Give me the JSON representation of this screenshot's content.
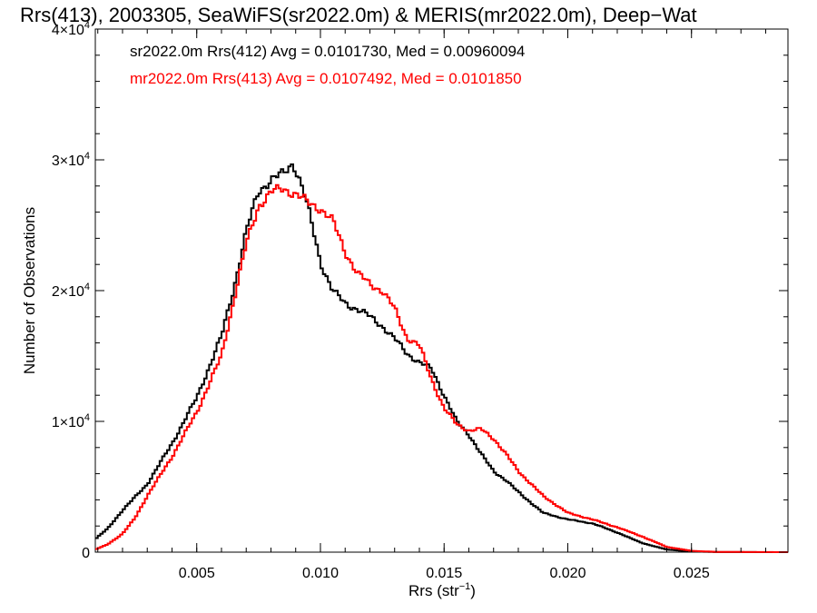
{
  "chart_data": {
    "type": "line",
    "title": "Rrs(413), 2003305, SeaWiFS(sr2022.0m) & MERIS(mr2022.0m), Deep−Wat",
    "xlabel": "Rrs (str",
    "xlabel_sup": "−1",
    "xlabel_close": ")",
    "ylabel": "Number of Observations",
    "xlim": [
      0.0009,
      0.0289
    ],
    "ylim": [
      0,
      40000
    ],
    "x_ticks": [
      0.005,
      0.01,
      0.015,
      0.02,
      0.025
    ],
    "x_tick_labels": [
      "0.005",
      "0.010",
      "0.015",
      "0.020",
      "0.025"
    ],
    "y_ticks": [
      {
        "value": 0,
        "base": "0",
        "exp": ""
      },
      {
        "value": 10000,
        "base": "1×10",
        "exp": "4"
      },
      {
        "value": 20000,
        "base": "2×10",
        "exp": "4"
      },
      {
        "value": 30000,
        "base": "3×10",
        "exp": "4"
      },
      {
        "value": 40000,
        "base": "4×10",
        "exp": "4"
      }
    ],
    "grid": false,
    "legend_position": "top-left",
    "step": 0.0001,
    "series": [
      {
        "name": "sr2022.0m Rrs(412) Avg = 0.0101730, Med = 0.00960094",
        "color": "#000000",
        "points": [
          [
            0.0009,
            1000
          ],
          [
            0.0014,
            1800
          ],
          [
            0.002,
            3200
          ],
          [
            0.003,
            5200
          ],
          [
            0.004,
            8300
          ],
          [
            0.005,
            11800
          ],
          [
            0.006,
            16500
          ],
          [
            0.0065,
            20200
          ],
          [
            0.007,
            24500
          ],
          [
            0.0075,
            27600
          ],
          [
            0.008,
            28500
          ],
          [
            0.0085,
            28900
          ],
          [
            0.0089,
            29800
          ],
          [
            0.0092,
            28300
          ],
          [
            0.0095,
            26300
          ],
          [
            0.01,
            22200
          ],
          [
            0.0105,
            20000
          ],
          [
            0.011,
            19000
          ],
          [
            0.0115,
            18600
          ],
          [
            0.012,
            18000
          ],
          [
            0.0125,
            17300
          ],
          [
            0.013,
            16300
          ],
          [
            0.0135,
            15200
          ],
          [
            0.014,
            14500
          ],
          [
            0.0145,
            14000
          ],
          [
            0.015,
            12000
          ],
          [
            0.0155,
            10000
          ],
          [
            0.016,
            9000
          ],
          [
            0.0165,
            7500
          ],
          [
            0.017,
            6200
          ],
          [
            0.0175,
            5500
          ],
          [
            0.018,
            4600
          ],
          [
            0.0185,
            3800
          ],
          [
            0.019,
            3000
          ],
          [
            0.02,
            2500
          ],
          [
            0.021,
            2200
          ],
          [
            0.022,
            1500
          ],
          [
            0.023,
            700
          ],
          [
            0.024,
            200
          ],
          [
            0.025,
            50
          ],
          [
            0.026,
            10
          ],
          [
            0.0289,
            0
          ]
        ]
      },
      {
        "name": "mr2022.0m Rrs(413) Avg = 0.0107492, Med = 0.0101850",
        "color": "#ff0000",
        "points": [
          [
            0.0009,
            200
          ],
          [
            0.0014,
            600
          ],
          [
            0.002,
            1400
          ],
          [
            0.0025,
            2600
          ],
          [
            0.003,
            4300
          ],
          [
            0.004,
            7300
          ],
          [
            0.005,
            10700
          ],
          [
            0.006,
            15000
          ],
          [
            0.0065,
            19300
          ],
          [
            0.007,
            23500
          ],
          [
            0.0075,
            26500
          ],
          [
            0.008,
            27500
          ],
          [
            0.0085,
            27800
          ],
          [
            0.009,
            27400
          ],
          [
            0.0095,
            26700
          ],
          [
            0.01,
            26300
          ],
          [
            0.0105,
            25300
          ],
          [
            0.011,
            23000
          ],
          [
            0.0115,
            21300
          ],
          [
            0.012,
            20500
          ],
          [
            0.0125,
            20000
          ],
          [
            0.013,
            18600
          ],
          [
            0.0135,
            16400
          ],
          [
            0.014,
            15800
          ],
          [
            0.0145,
            13200
          ],
          [
            0.015,
            11000
          ],
          [
            0.0155,
            9800
          ],
          [
            0.016,
            9300
          ],
          [
            0.0165,
            9400
          ],
          [
            0.017,
            8700
          ],
          [
            0.0175,
            7500
          ],
          [
            0.018,
            6200
          ],
          [
            0.019,
            4300
          ],
          [
            0.02,
            3000
          ],
          [
            0.021,
            2500
          ],
          [
            0.022,
            1900
          ],
          [
            0.023,
            1200
          ],
          [
            0.024,
            400
          ],
          [
            0.025,
            100
          ],
          [
            0.026,
            20
          ],
          [
            0.0289,
            0
          ]
        ]
      }
    ]
  }
}
